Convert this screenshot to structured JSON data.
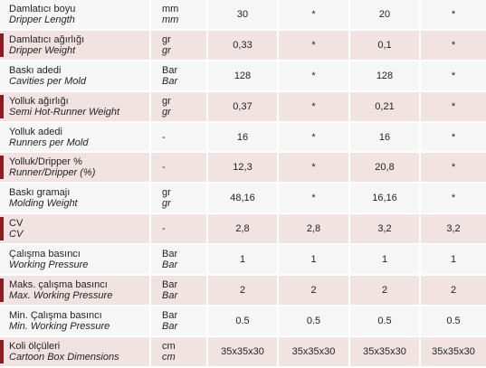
{
  "colors": {
    "accent": "#8c1c24",
    "row_light": "#f6f6f6",
    "row_pink": "#f0e3e2"
  },
  "rows": [
    {
      "tr": "Damlatıcı boyu",
      "en": "Dripper Length",
      "unit_tr": "mm",
      "unit_en": "mm",
      "v1": "30",
      "v2": "*",
      "v3": "20",
      "v4": "*",
      "marked": false
    },
    {
      "tr": "Damlatıcı ağırlığı",
      "en": "Dripper Weight",
      "unit_tr": "gr",
      "unit_en": "gr",
      "v1": "0,33",
      "v2": "*",
      "v3": "0,1",
      "v4": "*",
      "marked": true
    },
    {
      "tr": "Baskı adedi",
      "en": "Cavities per Mold",
      "unit_tr": "Bar",
      "unit_en": "Bar",
      "v1": "128",
      "v2": "*",
      "v3": "128",
      "v4": "*",
      "marked": false
    },
    {
      "tr": "Yolluk ağırlığı",
      "en": "Semi Hot-Runner Weight",
      "unit_tr": "gr",
      "unit_en": "gr",
      "v1": "0,37",
      "v2": "*",
      "v3": "0,21",
      "v4": "*",
      "marked": true
    },
    {
      "tr": "Yolluk adedi",
      "en": "Runners per Mold",
      "unit_tr": "-",
      "unit_en": "",
      "v1": "16",
      "v2": "*",
      "v3": "16",
      "v4": "*",
      "marked": false
    },
    {
      "tr": "Yolluk/Dripper %",
      "en": "Runner/Dripper (%)",
      "unit_tr": "-",
      "unit_en": "",
      "v1": "12,3",
      "v2": "*",
      "v3": "20,8",
      "v4": "*",
      "marked": true
    },
    {
      "tr": "Baskı gramajı",
      "en": "Molding Weight",
      "unit_tr": "gr",
      "unit_en": "gr",
      "v1": "48,16",
      "v2": "*",
      "v3": "16,16",
      "v4": "*",
      "marked": false
    },
    {
      "tr": "CV",
      "en": "CV",
      "unit_tr": "-",
      "unit_en": "",
      "v1": "2,8",
      "v2": "2,8",
      "v3": "3,2",
      "v4": "3,2",
      "marked": true
    },
    {
      "tr": "Çalışma basıncı",
      "en": "Working Pressure",
      "unit_tr": "Bar",
      "unit_en": "Bar",
      "v1": "1",
      "v2": "1",
      "v3": "1",
      "v4": "1",
      "marked": false
    },
    {
      "tr": "Maks. çalışma basıncı",
      "en": "Max. Working Pressure",
      "unit_tr": "Bar",
      "unit_en": "Bar",
      "v1": "2",
      "v2": "2",
      "v3": "2",
      "v4": "2",
      "marked": true
    },
    {
      "tr": "Min. Çalışma basıncı",
      "en": "Min. Working Pressure",
      "unit_tr": "Bar",
      "unit_en": "Bar",
      "v1": "0.5",
      "v2": "0.5",
      "v3": "0.5",
      "v4": "0.5",
      "marked": false
    },
    {
      "tr": "Koli ölçüleri",
      "en": "Cartoon Box Dimensions",
      "unit_tr": "cm",
      "unit_en": "cm",
      "v1": "35x35x30",
      "v2": "35x35x30",
      "v3": "35x35x30",
      "v4": "35x35x30",
      "marked": true
    }
  ]
}
